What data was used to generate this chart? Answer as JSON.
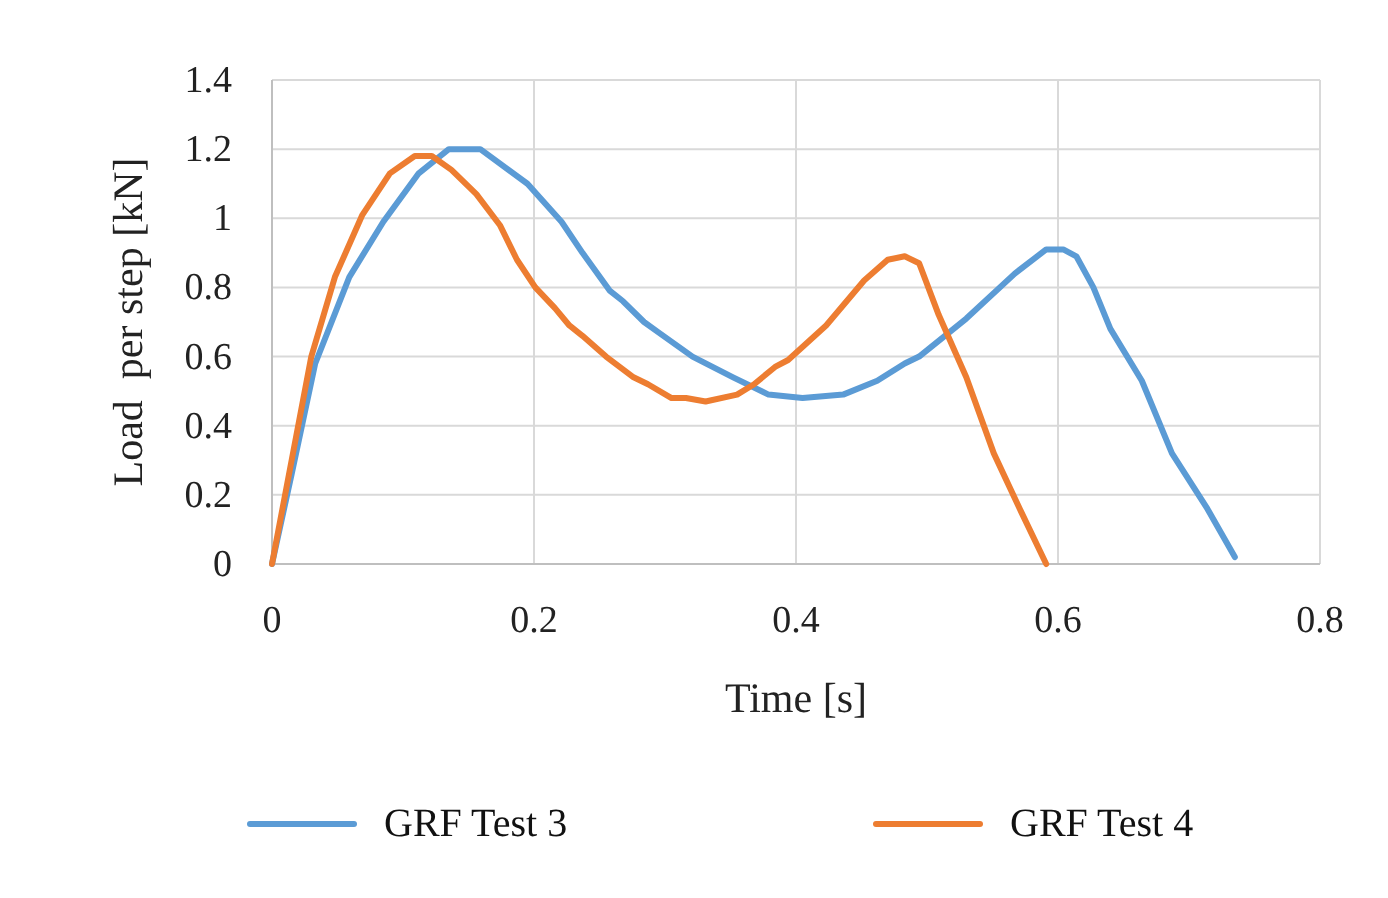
{
  "chart_data": {
    "type": "line",
    "xlabel": "Time [s]",
    "ylabel": "Load  per step [kN]",
    "xlim": [
      0,
      0.8
    ],
    "xticks": [
      0,
      0.2,
      0.4,
      0.6,
      0.8
    ],
    "ylim": [
      0,
      1.4
    ],
    "yticks": [
      0,
      0.2,
      0.4,
      0.6,
      0.8,
      1,
      1.2,
      1.4
    ],
    "grid": true,
    "legend": "bottom",
    "marker": "none",
    "line_style": "solid",
    "series": [
      {
        "name": "GRF Test 3",
        "color": "#5b9bd5",
        "x": [
          0,
          0.015,
          0.033,
          0.059,
          0.085,
          0.112,
          0.135,
          0.159,
          0.195,
          0.221,
          0.237,
          0.258,
          0.268,
          0.284,
          0.295,
          0.321,
          0.352,
          0.379,
          0.405,
          0.436,
          0.462,
          0.483,
          0.494,
          0.53,
          0.567,
          0.591,
          0.604,
          0.614,
          0.627,
          0.64,
          0.664,
          0.687,
          0.714,
          0.735
        ],
        "values": [
          0,
          0.26,
          0.58,
          0.83,
          0.99,
          1.13,
          1.2,
          1.2,
          1.1,
          0.99,
          0.9,
          0.79,
          0.76,
          0.7,
          0.67,
          0.6,
          0.54,
          0.49,
          0.48,
          0.49,
          0.53,
          0.58,
          0.6,
          0.71,
          0.84,
          0.91,
          0.91,
          0.89,
          0.8,
          0.68,
          0.53,
          0.32,
          0.16,
          0.02
        ]
      },
      {
        "name": "GRF Test 4",
        "color": "#ed7d31",
        "x": [
          0,
          0.015,
          0.03,
          0.048,
          0.069,
          0.09,
          0.109,
          0.122,
          0.137,
          0.156,
          0.174,
          0.187,
          0.201,
          0.216,
          0.227,
          0.237,
          0.255,
          0.276,
          0.287,
          0.305,
          0.316,
          0.331,
          0.355,
          0.368,
          0.384,
          0.394,
          0.423,
          0.452,
          0.47,
          0.483,
          0.494,
          0.509,
          0.53,
          0.551,
          0.572,
          0.591
        ],
        "values": [
          0,
          0.3,
          0.6,
          0.83,
          1.01,
          1.13,
          1.18,
          1.18,
          1.14,
          1.07,
          0.98,
          0.88,
          0.8,
          0.74,
          0.69,
          0.66,
          0.6,
          0.54,
          0.52,
          0.48,
          0.48,
          0.47,
          0.49,
          0.52,
          0.57,
          0.59,
          0.69,
          0.82,
          0.88,
          0.89,
          0.87,
          0.72,
          0.54,
          0.32,
          0.15,
          0
        ]
      }
    ]
  }
}
